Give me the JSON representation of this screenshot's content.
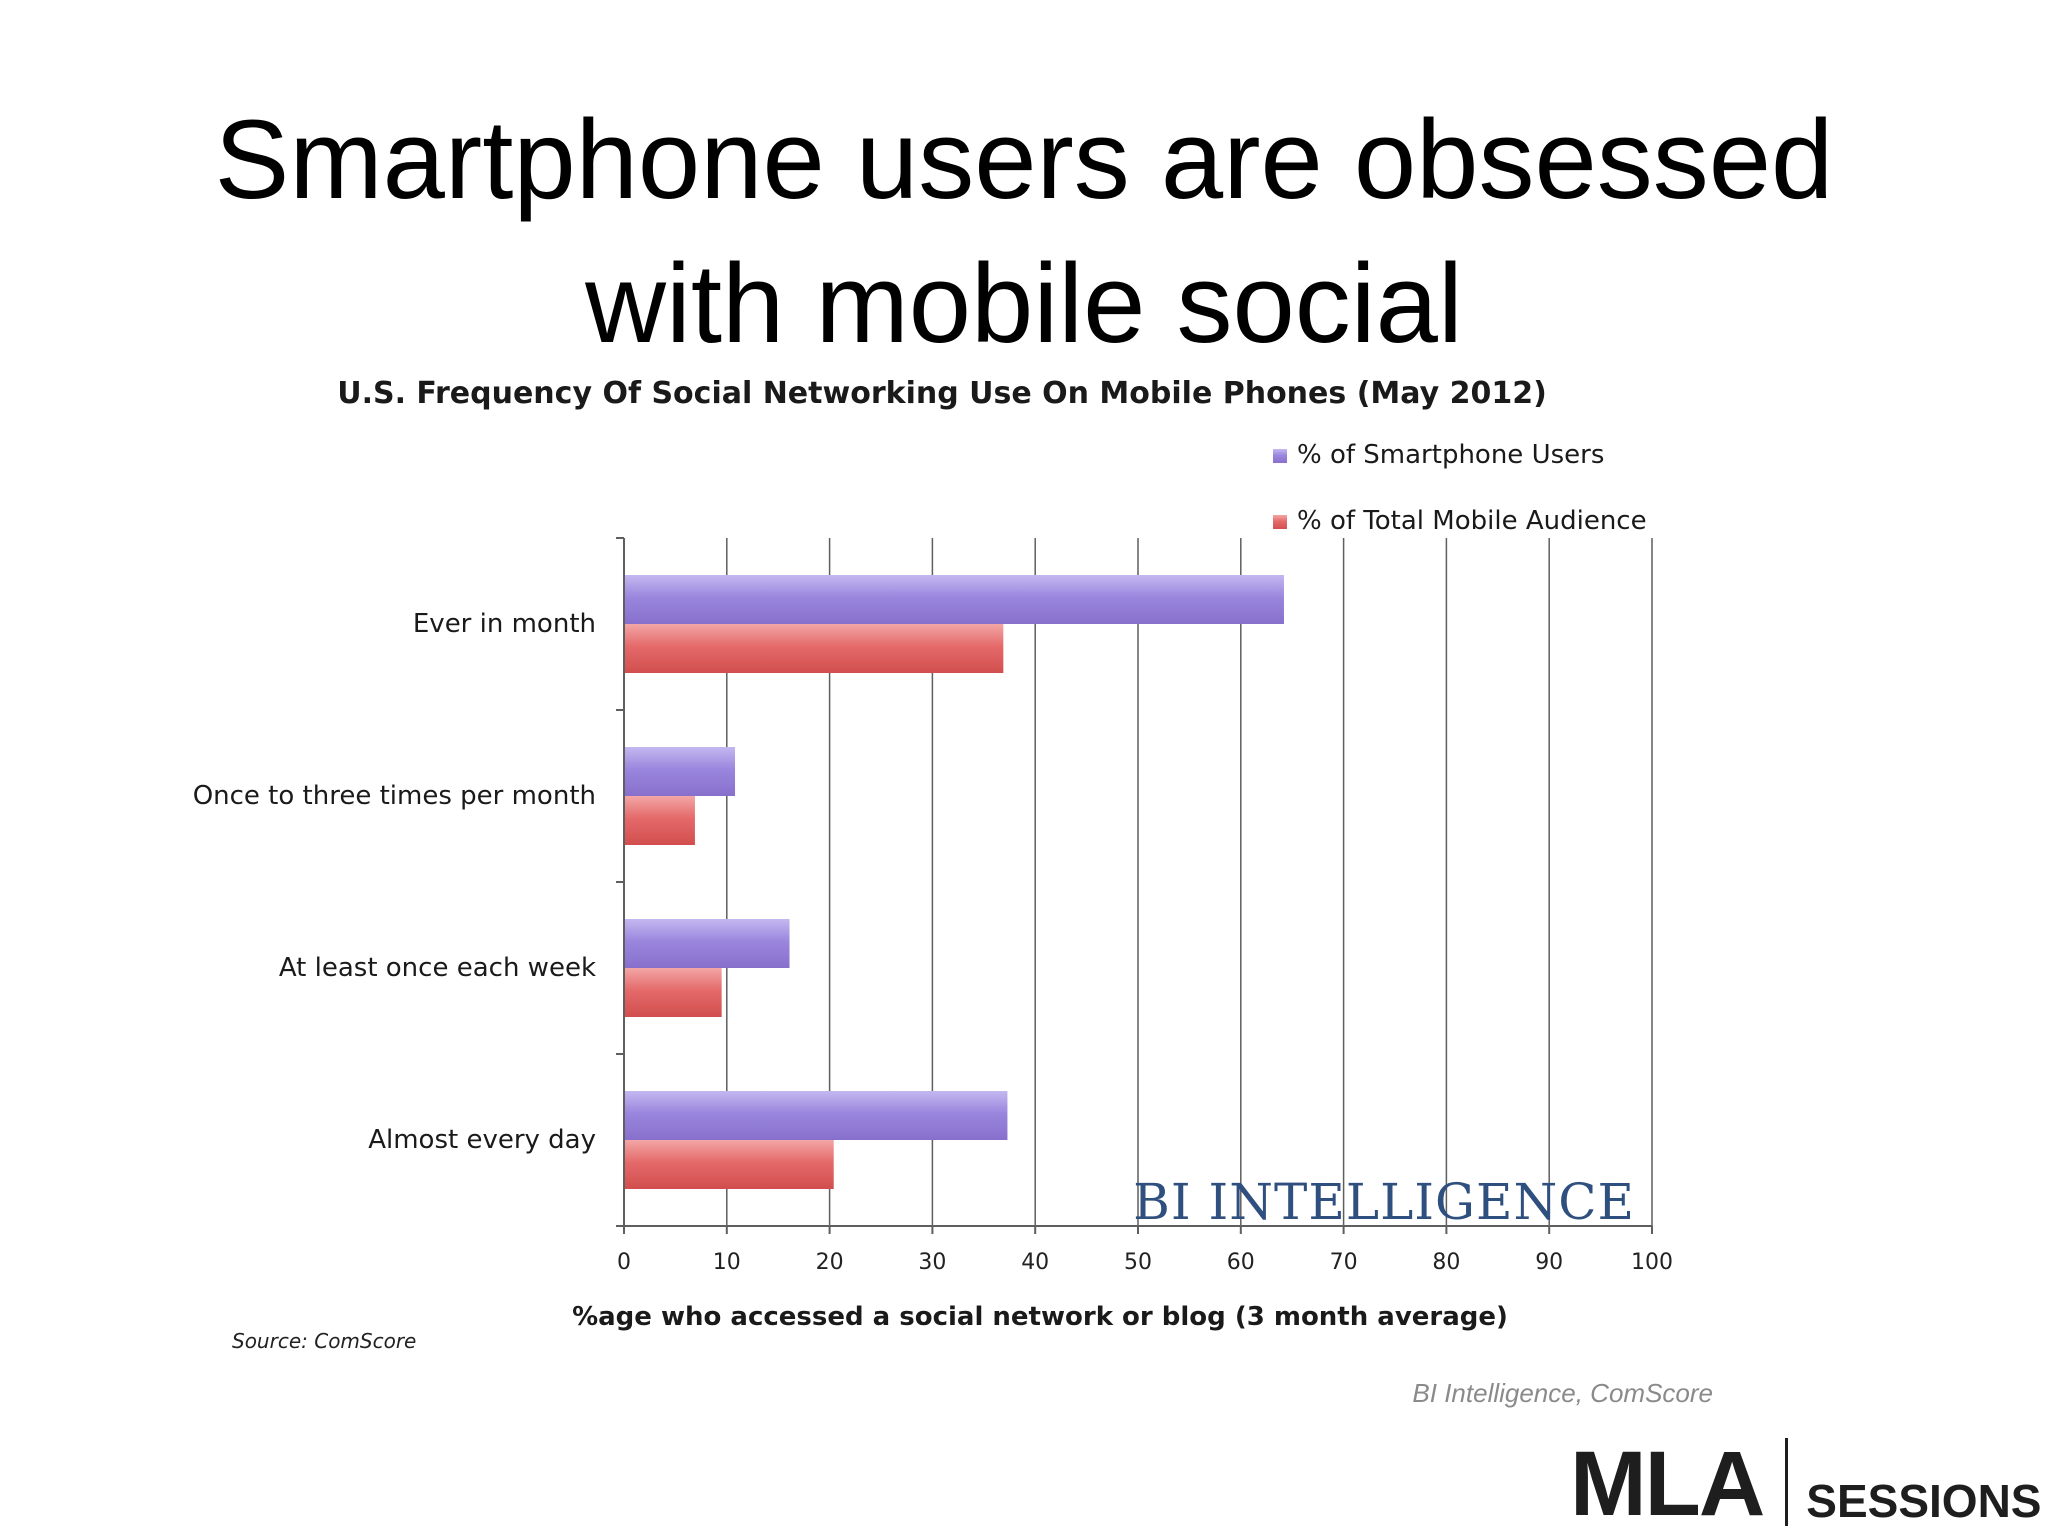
{
  "slide": {
    "title_line1": "Smartphone users are obsessed",
    "title_line2": "with mobile social",
    "caption": "BI Intelligence, ComScore",
    "logo_main": "MLA",
    "logo_sub": "SESSIONS"
  },
  "chart_data": {
    "type": "bar",
    "orientation": "horizontal",
    "title": "U.S. Frequency Of Social Networking Use On Mobile Phones (May 2012)",
    "xlabel": "%age who accessed a social network or blog (3 month average)",
    "ylabel": "",
    "categories": [
      "Ever in month",
      "Once to three times per month",
      "At least once each week",
      "Almost every day"
    ],
    "series": [
      {
        "name": "% of Smartphone Users",
        "values": [
          64.2,
          10.8,
          16.1,
          37.3
        ],
        "color": "#9b86de"
      },
      {
        "name": "% of Total Mobile Audience",
        "values": [
          36.9,
          6.9,
          9.5,
          20.4
        ],
        "color": "#e56a6a"
      }
    ],
    "xlim": [
      0,
      100
    ],
    "xticks": [
      0,
      10,
      20,
      30,
      40,
      50,
      60,
      70,
      80,
      90,
      100
    ],
    "grid": true,
    "legend": "top-right",
    "source": "Source: ComScore",
    "watermark": "BI INTELLIGENCE"
  }
}
